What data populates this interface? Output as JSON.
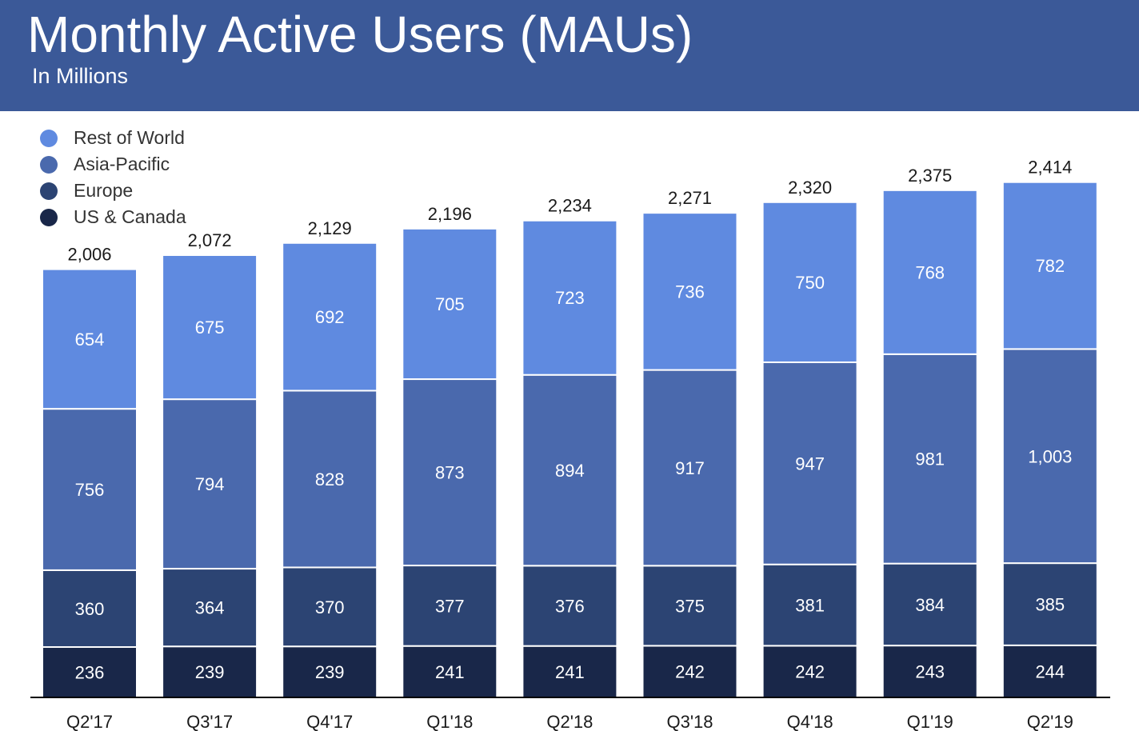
{
  "header": {
    "title": "Monthly Active Users (MAUs)",
    "subtitle": "In Millions",
    "background_color": "#3b5998"
  },
  "chart_data": {
    "type": "bar",
    "stacked": true,
    "title": "Monthly Active Users (MAUs)",
    "subtitle": "In Millions",
    "categories": [
      "Q2'17",
      "Q3'17",
      "Q4'17",
      "Q1'18",
      "Q2'18",
      "Q3'18",
      "Q4'18",
      "Q1'19",
      "Q2'19"
    ],
    "series": [
      {
        "name": "US & Canada",
        "color": "#192749",
        "values": [
          236,
          239,
          239,
          241,
          241,
          242,
          242,
          243,
          244
        ]
      },
      {
        "name": "Europe",
        "color": "#2c4473",
        "values": [
          360,
          364,
          370,
          377,
          376,
          375,
          381,
          384,
          385
        ]
      },
      {
        "name": "Asia-Pacific",
        "color": "#4a69ad",
        "values": [
          756,
          794,
          828,
          873,
          894,
          917,
          947,
          981,
          1003
        ]
      },
      {
        "name": "Rest of World",
        "color": "#5f8ae0",
        "values": [
          654,
          675,
          692,
          705,
          723,
          736,
          750,
          768,
          782
        ]
      }
    ],
    "value_labels": {
      "US & Canada": [
        "236",
        "239",
        "239",
        "241",
        "241",
        "242",
        "242",
        "243",
        "244"
      ],
      "Europe": [
        "360",
        "364",
        "370",
        "377",
        "376",
        "375",
        "381",
        "384",
        "385"
      ],
      "Asia-Pacific": [
        "756",
        "794",
        "828",
        "873",
        "894",
        "917",
        "947",
        "981",
        "1,003"
      ],
      "Rest of World": [
        "654",
        "675",
        "692",
        "705",
        "723",
        "736",
        "750",
        "768",
        "782"
      ]
    },
    "totals": [
      "2,006",
      "2,072",
      "2,129",
      "2,196",
      "2,234",
      "2,271",
      "2,320",
      "2,375",
      "2,414"
    ],
    "legend": [
      "Rest of World",
      "Asia-Pacific",
      "Europe",
      "US & Canada"
    ],
    "legend_position": "top-left",
    "y_axis_visible": false,
    "grid": false
  }
}
